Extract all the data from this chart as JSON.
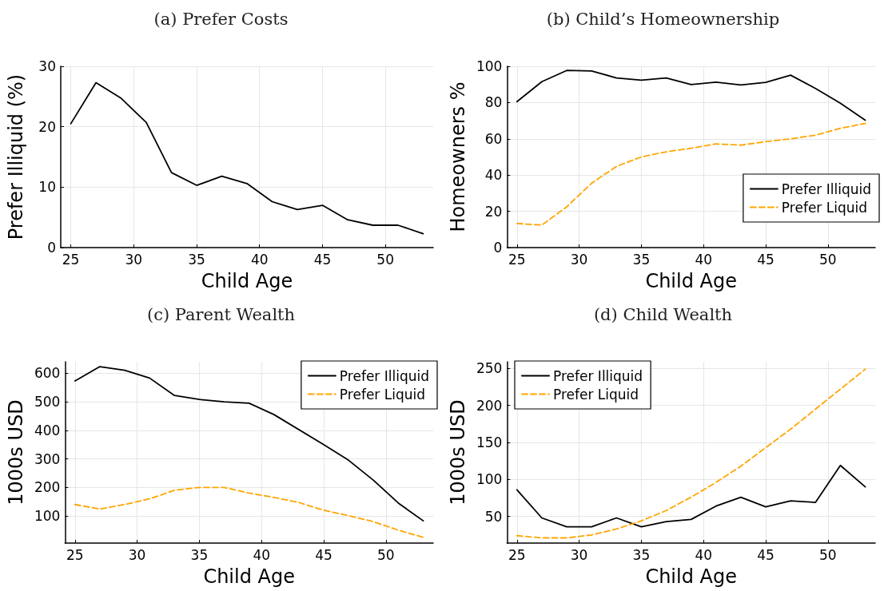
{
  "chart_data": [
    {
      "type": "line",
      "title": "(a) Prefer Costs",
      "xlabel": "Child Age",
      "ylabel": "Prefer Illiquid (%)",
      "x": [
        25,
        27,
        29,
        31,
        33,
        35,
        37,
        39,
        41,
        43,
        45,
        47,
        49,
        51,
        53
      ],
      "xlim": [
        24.2,
        53.8
      ],
      "xticks": [
        25,
        30,
        35,
        40,
        45,
        50
      ],
      "ylim": [
        0,
        30
      ],
      "yticks": [
        0,
        10,
        20,
        30
      ],
      "grid": true,
      "legend": false,
      "marker": "none",
      "line_style": "solid",
      "series": [
        {
          "color": "#000000",
          "values": [
            20.5,
            27.3,
            24.7,
            20.7,
            12.4,
            10.3,
            11.8,
            10.6,
            7.6,
            6.3,
            7.0,
            4.6,
            3.7,
            3.7,
            2.3
          ]
        }
      ]
    },
    {
      "type": "line",
      "title": "(b) Child’s Homeownership",
      "xlabel": "Child Age",
      "ylabel": "Homeowners %",
      "x": [
        25,
        27,
        29,
        31,
        33,
        35,
        37,
        39,
        41,
        43,
        45,
        47,
        49,
        51,
        53
      ],
      "xlim": [
        24.2,
        53.8
      ],
      "xticks": [
        25,
        30,
        35,
        40,
        45,
        50
      ],
      "ylim": [
        0,
        100
      ],
      "yticks": [
        0,
        20,
        40,
        60,
        80,
        100
      ],
      "grid": true,
      "legend": "bottom right",
      "marker": "none",
      "series": [
        {
          "name": "Prefer Illiquid",
          "color": "#000000",
          "line_style": "solid",
          "values": [
            80.5,
            91.5,
            97.7,
            97.4,
            93.6,
            92.3,
            93.6,
            89.9,
            91.2,
            89.7,
            91.1,
            95.1,
            87.8,
            79.6,
            70.3
          ]
        },
        {
          "name": "Prefer Liquid",
          "color": "#ffa500",
          "line_style": "dashed",
          "values": [
            13.3,
            12.4,
            22.5,
            35.5,
            44.8,
            50,
            52.8,
            54.8,
            57.2,
            56.5,
            58.4,
            60,
            62,
            65.8,
            68.5
          ]
        }
      ]
    },
    {
      "type": "line",
      "title": "(c) Parent Wealth",
      "xlabel": "Child Age",
      "ylabel": "1000s USD",
      "x": [
        25,
        27,
        29,
        31,
        33,
        35,
        37,
        39,
        41,
        43,
        45,
        47,
        49,
        51,
        53
      ],
      "xlim": [
        24.2,
        53.8
      ],
      "xticks": [
        25,
        30,
        35,
        40,
        45,
        50
      ],
      "ylim": [
        5,
        640
      ],
      "yticks": [
        100,
        200,
        300,
        400,
        500,
        600
      ],
      "grid": true,
      "legend": "top right",
      "marker": "none",
      "series": [
        {
          "name": "Prefer Illiquid",
          "color": "#000000",
          "line_style": "solid",
          "values": [
            573,
            623,
            610,
            583,
            522,
            508,
            500,
            495,
            455,
            null,
            350,
            295,
            225,
            145,
            83
          ]
        },
        {
          "name": "Prefer Liquid",
          "color": "#ffa500",
          "line_style": "dashed",
          "values": [
            140,
            124,
            140,
            160,
            190,
            200,
            200,
            180,
            165,
            147,
            120,
            101,
            80,
            50,
            25
          ]
        }
      ]
    },
    {
      "type": "line",
      "title": "(d) Child Wealth",
      "xlabel": "Child Age",
      "ylabel": "1000s USD",
      "x": [
        25,
        27,
        29,
        31,
        33,
        35,
        37,
        39,
        41,
        43,
        45,
        47,
        49,
        51,
        53
      ],
      "xlim": [
        24.2,
        53.8
      ],
      "xticks": [
        25,
        30,
        35,
        40,
        45,
        50
      ],
      "ylim": [
        14,
        259
      ],
      "yticks": [
        50,
        100,
        150,
        200,
        250
      ],
      "grid": true,
      "legend": "top left",
      "marker": "none",
      "series": [
        {
          "name": "Prefer Illiquid",
          "color": "#000000",
          "line_style": "solid",
          "values": [
            86,
            48,
            36,
            36,
            48,
            36,
            43,
            46,
            64,
            76,
            63,
            71,
            69,
            119,
            90
          ]
        },
        {
          "name": "Prefer Liquid",
          "color": "#ffa500",
          "line_style": "dashed",
          "values": [
            24,
            21,
            21,
            25,
            33,
            44,
            58,
            76,
            96,
            118,
            143,
            168,
            195,
            222,
            249
          ]
        }
      ]
    }
  ]
}
